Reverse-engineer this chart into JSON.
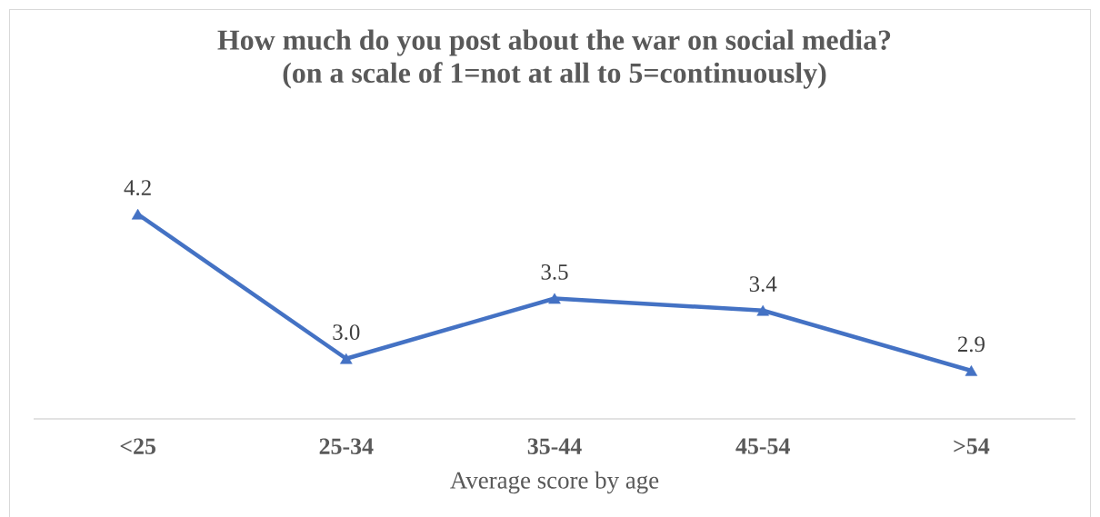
{
  "chart_data": {
    "type": "line",
    "title": "How much do you post about the war on social media?",
    "subtitle": "(on a scale of 1=not at all to 5=continuously)",
    "xlabel": "Average score by age",
    "categories": [
      "<25",
      "25-34",
      "35-44",
      "45-54",
      ">54"
    ],
    "values": [
      4.2,
      3.0,
      3.5,
      3.4,
      2.9
    ],
    "value_labels": [
      "4.2",
      "3.0",
      "3.5",
      "3.4",
      "2.9"
    ],
    "color": "#4472c4",
    "tick_labels": "x",
    "marker": "triangle",
    "line_style": "solid"
  }
}
